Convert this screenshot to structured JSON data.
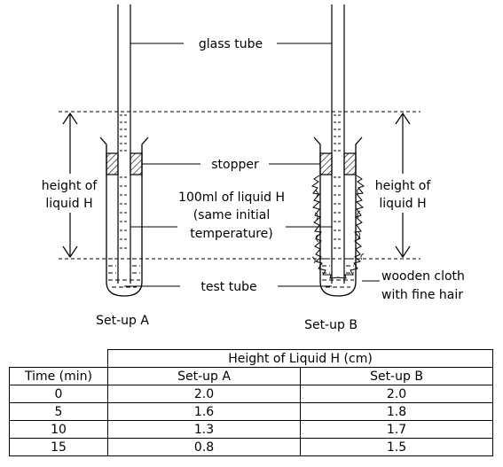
{
  "labels": {
    "glass_tube": "glass tube",
    "stopper": "stopper",
    "liquid_line1": "100ml of liquid H",
    "liquid_line2": "(same initial",
    "liquid_line3": "temperature)",
    "test_tube": "test tube",
    "height_left_1": "height of",
    "height_left_2": "liquid H",
    "height_right_1": "height of",
    "height_right_2": "liquid H",
    "cloth_1": "wooden cloth",
    "cloth_2": "with fine hair",
    "setup_a": "Set-up A",
    "setup_b": "Set-up B"
  },
  "table": {
    "group_header": "Height of Liquid H (cm)",
    "headers": [
      "Time (min)",
      "Set-up A",
      "Set-up B"
    ],
    "rows": [
      [
        "0",
        "2.0",
        "2.0"
      ],
      [
        "5",
        "1.6",
        "1.8"
      ],
      [
        "10",
        "1.3",
        "1.7"
      ],
      [
        "15",
        "0.8",
        "1.5"
      ]
    ]
  }
}
